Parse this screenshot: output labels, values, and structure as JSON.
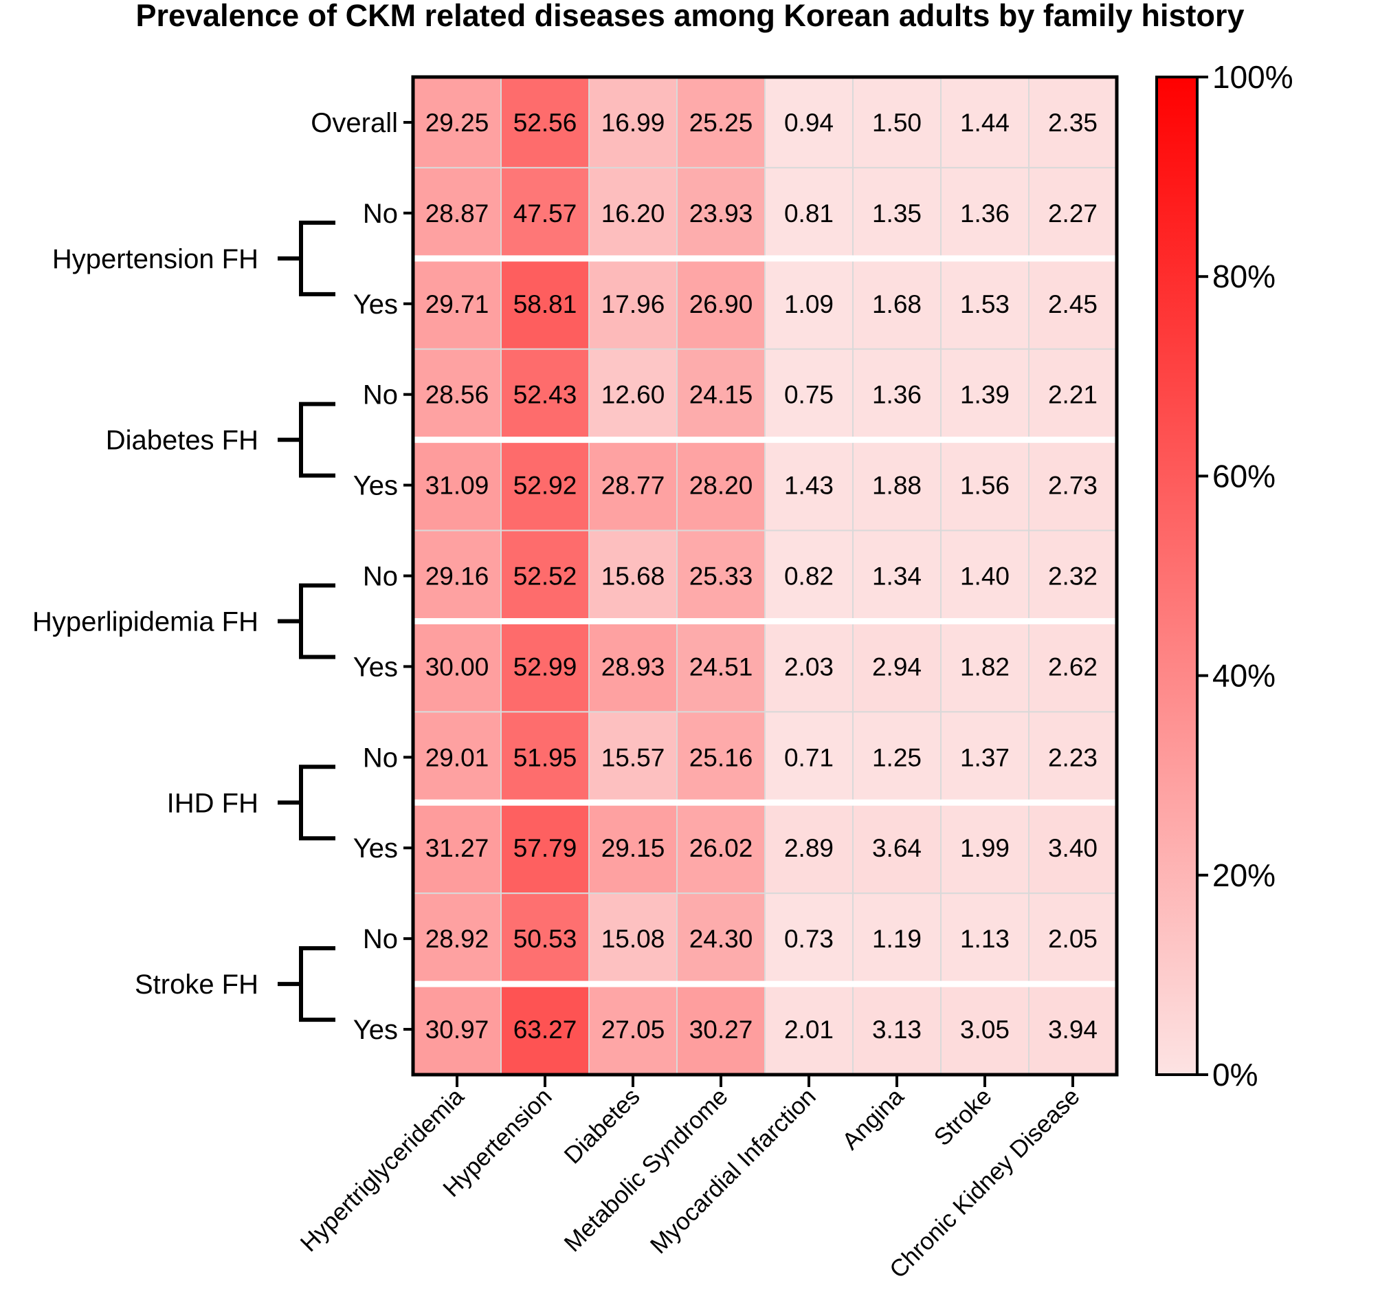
{
  "chart_data": {
    "type": "heatmap",
    "title": "Prevalence of CKM related diseases among Korean adults by family history",
    "columns": [
      "Hypertriglyceridemia",
      "Hypertension",
      "Diabetes",
      "Metabolic Syndrome",
      "Myocardial Infarction",
      "Angina",
      "Stroke",
      "Chronic Kidney Disease"
    ],
    "rows": [
      {
        "group": "",
        "label": "Overall",
        "values": [
          "29.25",
          "52.56",
          "16.99",
          "25.25",
          "0.94",
          "1.50",
          "1.44",
          "2.35"
        ]
      },
      {
        "group": "Hypertension FH",
        "label": "No",
        "values": [
          "28.87",
          "47.57",
          "16.20",
          "23.93",
          "0.81",
          "1.35",
          "1.36",
          "2.27"
        ]
      },
      {
        "group": "Hypertension FH",
        "label": "Yes",
        "values": [
          "29.71",
          "58.81",
          "17.96",
          "26.90",
          "1.09",
          "1.68",
          "1.53",
          "2.45"
        ]
      },
      {
        "group": "Diabetes FH",
        "label": "No",
        "values": [
          "28.56",
          "52.43",
          "12.60",
          "24.15",
          "0.75",
          "1.36",
          "1.39",
          "2.21"
        ]
      },
      {
        "group": "Diabetes FH",
        "label": "Yes",
        "values": [
          "31.09",
          "52.92",
          "28.77",
          "28.20",
          "1.43",
          "1.88",
          "1.56",
          "2.73"
        ]
      },
      {
        "group": "Hyperlipidemia FH",
        "label": "No",
        "values": [
          "29.16",
          "52.52",
          "15.68",
          "25.33",
          "0.82",
          "1.34",
          "1.40",
          "2.32"
        ]
      },
      {
        "group": "Hyperlipidemia FH",
        "label": "Yes",
        "values": [
          "30.00",
          "52.99",
          "28.93",
          "24.51",
          "2.03",
          "2.94",
          "1.82",
          "2.62"
        ]
      },
      {
        "group": "IHD FH",
        "label": "No",
        "values": [
          "29.01",
          "51.95",
          "15.57",
          "25.16",
          "0.71",
          "1.25",
          "1.37",
          "2.23"
        ]
      },
      {
        "group": "IHD FH",
        "label": "Yes",
        "values": [
          "31.27",
          "57.79",
          "29.15",
          "26.02",
          "2.89",
          "3.64",
          "1.99",
          "3.40"
        ]
      },
      {
        "group": "Stroke FH",
        "label": "No",
        "values": [
          "28.92",
          "50.53",
          "15.08",
          "24.30",
          "0.73",
          "1.19",
          "1.13",
          "2.05"
        ]
      },
      {
        "group": "Stroke FH",
        "label": "Yes",
        "values": [
          "30.97",
          "63.27",
          "27.05",
          "30.27",
          "2.01",
          "3.13",
          "3.05",
          "3.94"
        ]
      }
    ],
    "groups": [
      "Hypertension FH",
      "Diabetes FH",
      "Hyperlipidemia FH",
      "IHD FH",
      "Stroke FH"
    ],
    "colorbar": {
      "min": 0,
      "max": 100,
      "ticks": [
        "0%",
        "20%",
        "40%",
        "60%",
        "80%",
        "100%"
      ],
      "low_color": "#fde3e3",
      "high_color": "#ff0000"
    }
  }
}
